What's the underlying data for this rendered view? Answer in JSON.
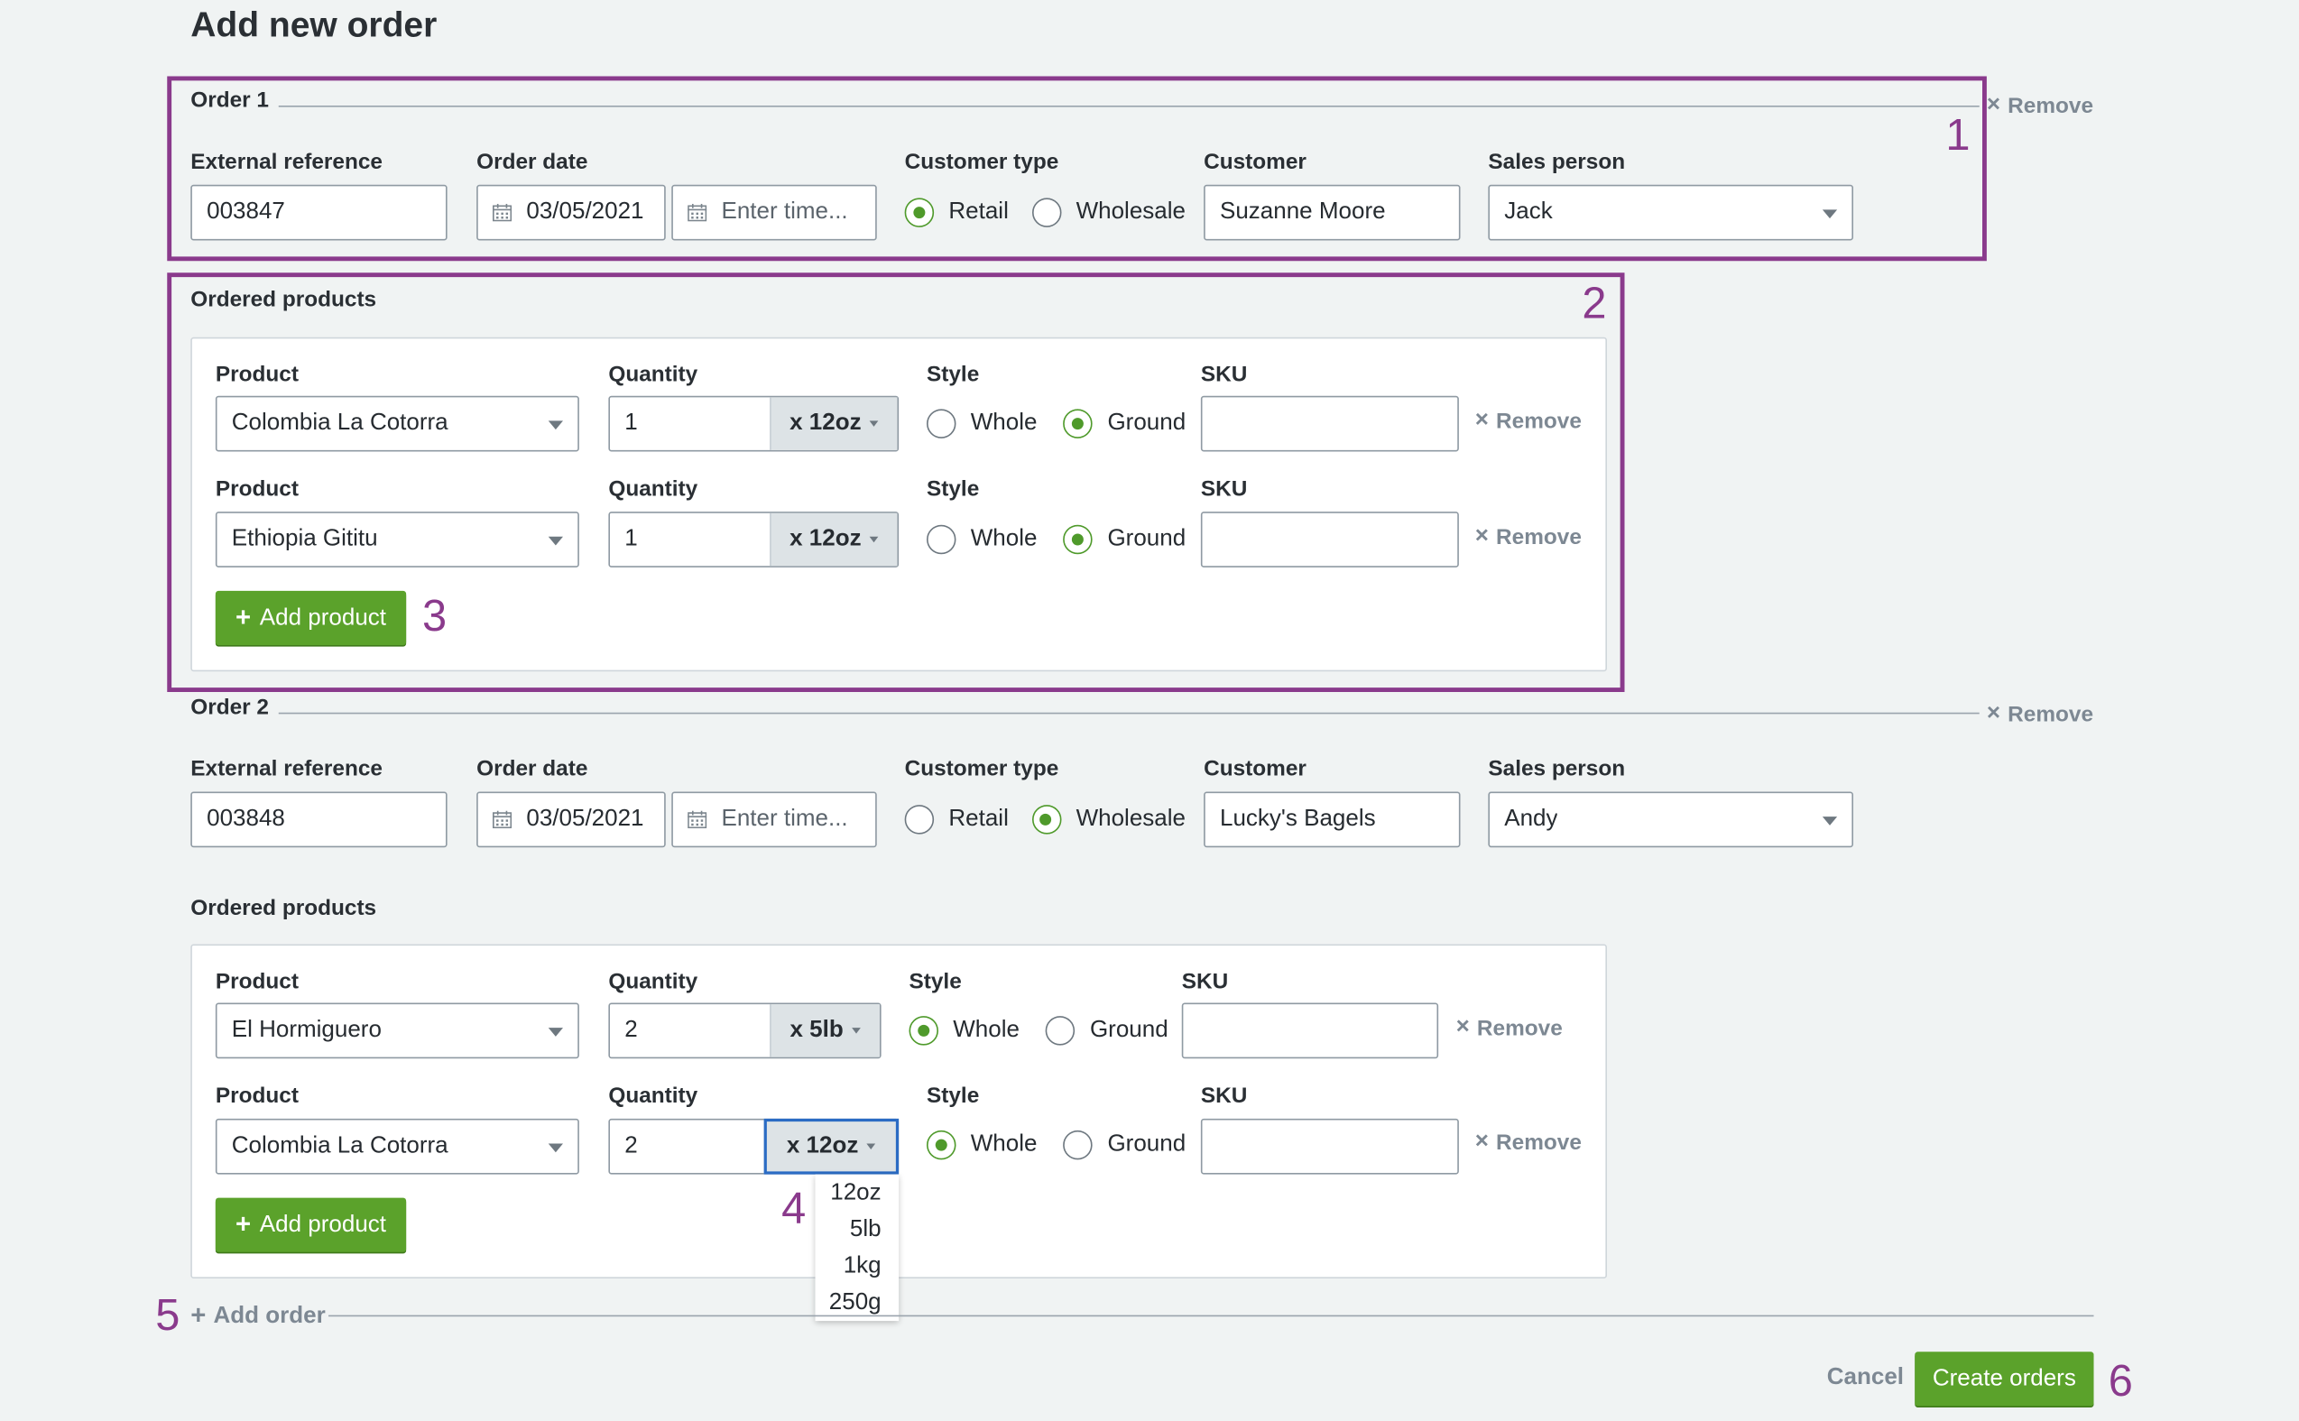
{
  "page": {
    "title": "Add new order"
  },
  "labels": {
    "external_reference": "External reference",
    "order_date": "Order date",
    "customer_type": "Customer type",
    "customer": "Customer",
    "sales_person": "Sales person",
    "ordered_products": "Ordered products",
    "product": "Product",
    "quantity": "Quantity",
    "style": "Style",
    "sku": "SKU",
    "remove": "Remove",
    "add_product": "Add product",
    "time_placeholder": "Enter time...",
    "retail": "Retail",
    "wholesale": "Wholesale",
    "whole": "Whole",
    "ground": "Ground"
  },
  "orders": [
    {
      "title": "Order 1",
      "external_reference": "003847",
      "order_date": "03/05/2021",
      "customer_type": "Retail",
      "customer": "Suzanne Moore",
      "sales_person": "Jack",
      "products": [
        {
          "product": "Colombia La Cotorra",
          "quantity": "1",
          "unit": "x 12oz",
          "style": "Ground",
          "sku": ""
        },
        {
          "product": "Ethiopia Gititu",
          "quantity": "1",
          "unit": "x 12oz",
          "style": "Ground",
          "sku": ""
        }
      ]
    },
    {
      "title": "Order 2",
      "external_reference": "003848",
      "order_date": "03/05/2021",
      "customer_type": "Wholesale",
      "customer": "Lucky's Bagels",
      "sales_person": "Andy",
      "products": [
        {
          "product": "El Hormiguero",
          "quantity": "2",
          "unit": "x 5lb",
          "style": "Whole",
          "sku": ""
        },
        {
          "product": "Colombia La Cotorra",
          "quantity": "2",
          "unit": "x 12oz",
          "style": "Whole",
          "sku": ""
        }
      ]
    }
  ],
  "unit_dropdown": {
    "options": [
      "12oz",
      "5lb",
      "1kg",
      "250g"
    ]
  },
  "footer": {
    "add_order": "Add order",
    "cancel": "Cancel",
    "create": "Create orders"
  },
  "annotations": [
    "1",
    "2",
    "3",
    "4",
    "5",
    "6"
  ],
  "colors": {
    "accent_green": "#5ba22b",
    "annotation_purple": "#8a3a8c",
    "focus_blue": "#2b6cc4",
    "background": "#f0f3f3"
  },
  "icons": {
    "calendar": "calendar-icon",
    "remove": "close-icon",
    "add": "plus-icon",
    "select": "chevron-down-icon"
  }
}
